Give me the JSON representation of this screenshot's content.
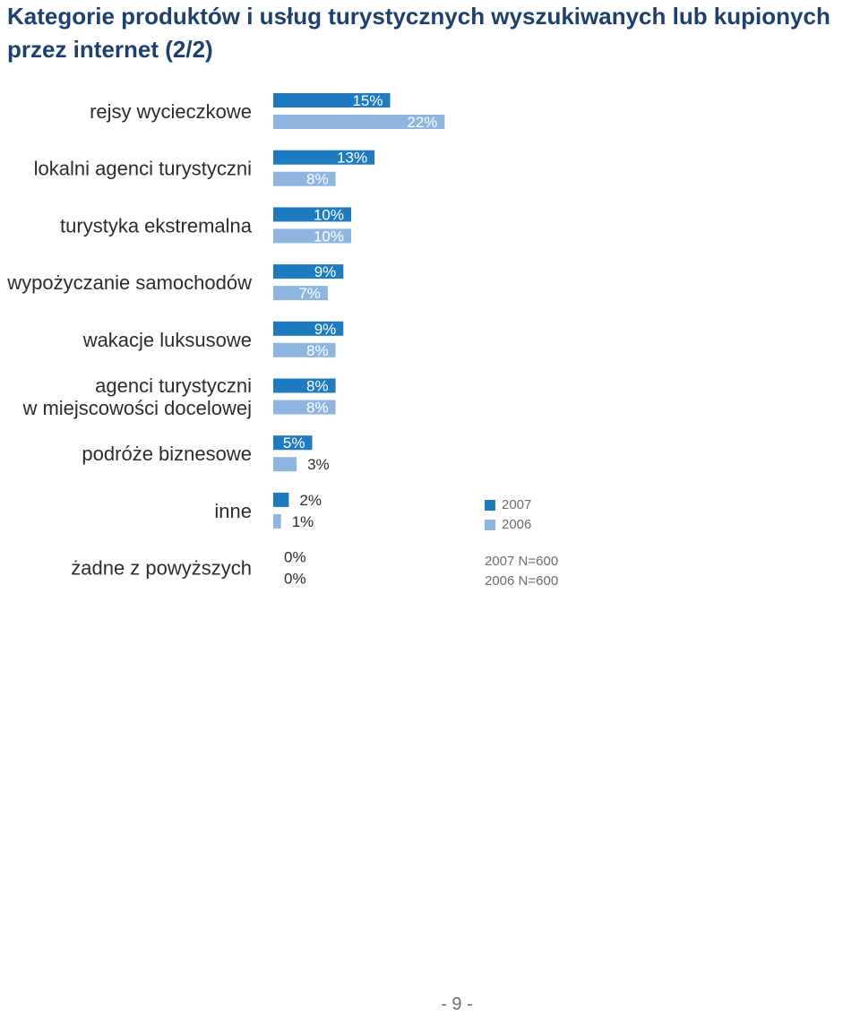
{
  "chart_data": {
    "type": "bar",
    "orientation": "horizontal",
    "title": "Kategorie produktów i usług turystycznych wyszukiwanych lub kupionych przez internet (2/2)",
    "categories": [
      [
        "rejsy wycieczkowe"
      ],
      [
        "lokalni agenci turystyczni"
      ],
      [
        "turystyka ekstremalna"
      ],
      [
        "wypożyczanie samochodów"
      ],
      [
        "wakacje luksusowe"
      ],
      [
        "agenci turystyczni",
        "w miejscowości docelowej"
      ],
      [
        "podróże biznesowe"
      ],
      [
        "inne"
      ],
      [
        "żadne z powyższych"
      ]
    ],
    "series": [
      {
        "name": "2007",
        "color": "#1f7bc0",
        "values": [
          15,
          13,
          10,
          9,
          9,
          8,
          5,
          2,
          0
        ],
        "labels": [
          "15%",
          "13%",
          "10%",
          "9%",
          "9%",
          "8%",
          "5%",
          "2%",
          "0%"
        ]
      },
      {
        "name": "2006",
        "color": "#8fb6e0",
        "values": [
          22,
          8,
          10,
          7,
          8,
          8,
          3,
          1,
          0
        ],
        "labels": [
          "22%",
          "8%",
          "10%",
          "7%",
          "8%",
          "8%",
          "3%",
          "1%",
          "0%"
        ]
      }
    ],
    "unit": "%",
    "legend_position": "right",
    "grid": false
  },
  "notes": [
    "2007 N=600",
    "2006 N=600"
  ],
  "page_number": "- 9 -"
}
